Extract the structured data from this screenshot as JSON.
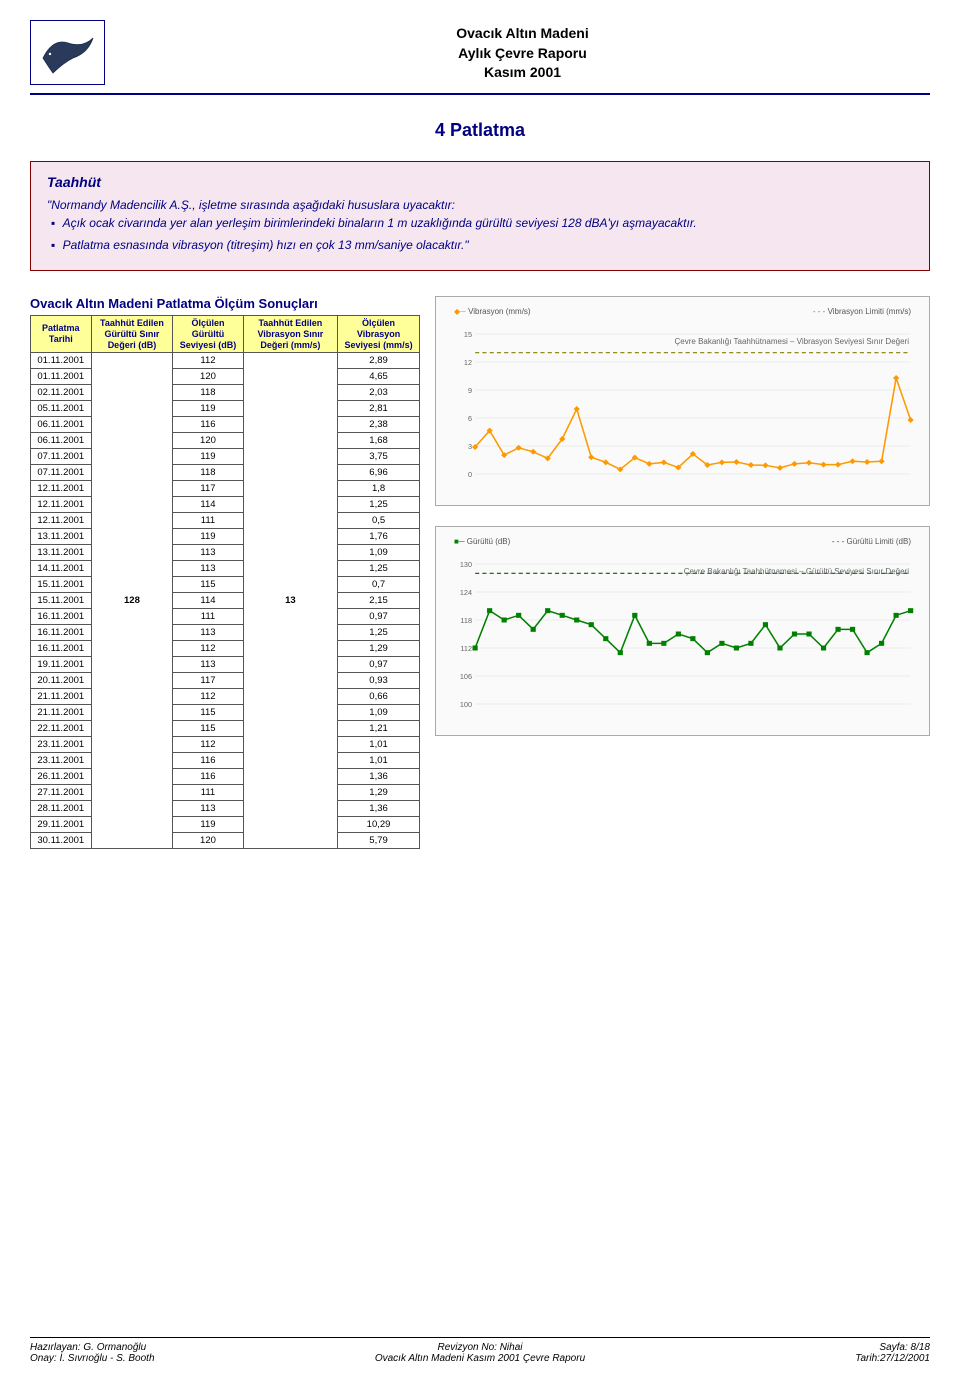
{
  "header": {
    "line1": "Ovacık Altın Madeni",
    "line2": "Aylık Çevre Raporu",
    "line3": "Kasım 2001"
  },
  "section_title": "4 Patlatma",
  "callout": {
    "title": "Taahhüt",
    "intro": "\"Normandy Madencilik A.Ş., işletme sırasında aşağıdaki hususlara uyacaktır:",
    "items": [
      "Açık ocak civarında yer alan yerleşim birimlerindeki binaların 1 m uzaklığında gürültü seviyesi 128 dBA'yı aşmayacaktır.",
      "Patlatma esnasında vibrasyon (titreşim) hızı en çok 13 mm/saniye olacaktır.\""
    ]
  },
  "table": {
    "title": "Ovacık Altın Madeni Patlatma Ölçüm Sonuçları",
    "headers": {
      "c1": "Patlatma Tarihi",
      "c2": "Taahhüt Edilen Gürültü Sınır Değeri (dB)",
      "c3": "Ölçülen Gürültü Seviyesi (dB)",
      "c4": "Taahhüt Edilen Vibrasyon Sınır Değeri (mm/s)",
      "c5": "Ölçülen Vibrasyon Seviyesi (mm/s)"
    },
    "noise_limit": "128",
    "vib_limit": "13",
    "rows": [
      {
        "d": "01.11.2001",
        "n": "112",
        "v": "2,89"
      },
      {
        "d": "01.11.2001",
        "n": "120",
        "v": "4,65"
      },
      {
        "d": "02.11.2001",
        "n": "118",
        "v": "2,03"
      },
      {
        "d": "05.11.2001",
        "n": "119",
        "v": "2,81"
      },
      {
        "d": "06.11.2001",
        "n": "116",
        "v": "2,38"
      },
      {
        "d": "06.11.2001",
        "n": "120",
        "v": "1,68"
      },
      {
        "d": "07.11.2001",
        "n": "119",
        "v": "3,75"
      },
      {
        "d": "07.11.2001",
        "n": "118",
        "v": "6,96"
      },
      {
        "d": "12.11.2001",
        "n": "117",
        "v": "1,8"
      },
      {
        "d": "12.11.2001",
        "n": "114",
        "v": "1,25"
      },
      {
        "d": "12.11.2001",
        "n": "111",
        "v": "0,5"
      },
      {
        "d": "13.11.2001",
        "n": "119",
        "v": "1,76"
      },
      {
        "d": "13.11.2001",
        "n": "113",
        "v": "1,09"
      },
      {
        "d": "14.11.2001",
        "n": "113",
        "v": "1,25"
      },
      {
        "d": "15.11.2001",
        "n": "115",
        "v": "0,7"
      },
      {
        "d": "15.11.2001",
        "n": "114",
        "v": "2,15"
      },
      {
        "d": "16.11.2001",
        "n": "111",
        "v": "0,97"
      },
      {
        "d": "16.11.2001",
        "n": "113",
        "v": "1,25"
      },
      {
        "d": "16.11.2001",
        "n": "112",
        "v": "1,29"
      },
      {
        "d": "19.11.2001",
        "n": "113",
        "v": "0,97"
      },
      {
        "d": "20.11.2001",
        "n": "117",
        "v": "0,93"
      },
      {
        "d": "21.11.2001",
        "n": "112",
        "v": "0,66"
      },
      {
        "d": "21.11.2001",
        "n": "115",
        "v": "1,09"
      },
      {
        "d": "22.11.2001",
        "n": "115",
        "v": "1,21"
      },
      {
        "d": "23.11.2001",
        "n": "112",
        "v": "1,01"
      },
      {
        "d": "23.11.2001",
        "n": "116",
        "v": "1,01"
      },
      {
        "d": "26.11.2001",
        "n": "116",
        "v": "1,36"
      },
      {
        "d": "27.11.2001",
        "n": "111",
        "v": "1,29"
      },
      {
        "d": "28.11.2001",
        "n": "113",
        "v": "1,36"
      },
      {
        "d": "29.11.2001",
        "n": "119",
        "v": "10,29"
      },
      {
        "d": "30.11.2001",
        "n": "120",
        "v": "5,79"
      }
    ]
  },
  "chart_vibration": {
    "type": "line",
    "legend_left": "Vibrasyon (mm/s)",
    "legend_right": "Vibrasyon Limiti (mm/s)",
    "note": "Çevre Bakanlığı Taahhütnamesi – Vibrasyon Seviyesi Sınır Değeri",
    "ylim": [
      0,
      15
    ],
    "limit_value": 13,
    "series_color": "#ff9900",
    "limit_color": "#808000",
    "background_color": "#fafafa",
    "values": [
      2.89,
      4.65,
      2.03,
      2.81,
      2.38,
      1.68,
      3.75,
      6.96,
      1.8,
      1.25,
      0.5,
      1.76,
      1.09,
      1.25,
      0.7,
      2.15,
      0.97,
      1.25,
      1.29,
      0.97,
      0.93,
      0.66,
      1.09,
      1.21,
      1.01,
      1.01,
      1.36,
      1.29,
      1.36,
      10.29,
      5.79
    ]
  },
  "chart_noise": {
    "type": "line",
    "legend_left": "Gürültü (dB)",
    "legend_right": "Gürültü Limiti (dB)",
    "note": "Çevre Bakanlığı Taahhütnamesi – Gürültü Seviyesi Sınır Değeri",
    "ylim": [
      100,
      130
    ],
    "limit_value": 128,
    "series_color": "#008000",
    "limit_color": "#006400",
    "background_color": "#fafafa",
    "ylabel": "Gürültü (dB)",
    "values": [
      112,
      120,
      118,
      119,
      116,
      120,
      119,
      118,
      117,
      114,
      111,
      119,
      113,
      113,
      115,
      114,
      111,
      113,
      112,
      113,
      117,
      112,
      115,
      115,
      112,
      116,
      116,
      111,
      113,
      119,
      120
    ]
  },
  "footer": {
    "prepared": "Hazırlayan: G. Ormanoğlu",
    "approved": "Onay: İ. Sıvrıoğlu - S. Booth",
    "revision": "Revizyon No: Nihai",
    "doc": "Ovacık Altın Madeni Kasım 2001 Çevre Raporu",
    "page": "Sayfa: 8/18",
    "date": "Tarih:27/12/2001"
  }
}
